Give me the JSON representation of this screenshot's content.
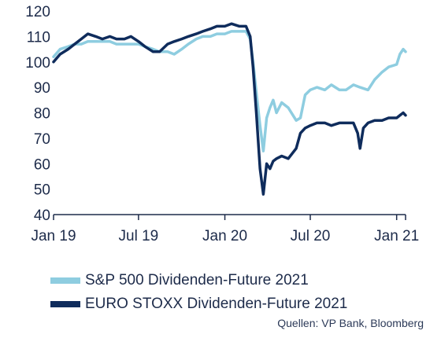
{
  "chart_data": {
    "type": "line",
    "title": "",
    "xlabel": "",
    "ylabel": "",
    "x_range": [
      "2019-01-01",
      "2021-01-20"
    ],
    "ylim": [
      40,
      120
    ],
    "y_ticks": [
      "40",
      "50",
      "60",
      "70",
      "80",
      "90",
      "100",
      "110",
      "120"
    ],
    "x_ticks": [
      {
        "label": "Jan 19",
        "date": "2019-01-01"
      },
      {
        "label": "Jul 19",
        "date": "2019-07-01"
      },
      {
        "label": "Jan 20",
        "date": "2020-01-01"
      },
      {
        "label": "Jul 20",
        "date": "2020-07-01"
      },
      {
        "label": "Jan 21",
        "date": "2021-01-01"
      }
    ],
    "grid": false,
    "legend_position": "bottom",
    "series": [
      {
        "name": "S&P 500 Dividenden-Future 2021",
        "color": "#8ecde0",
        "points": [
          [
            "2019-01-01",
            102
          ],
          [
            "2019-01-15",
            105
          ],
          [
            "2019-02-01",
            106
          ],
          [
            "2019-02-15",
            107
          ],
          [
            "2019-03-01",
            107
          ],
          [
            "2019-03-15",
            108
          ],
          [
            "2019-04-01",
            108
          ],
          [
            "2019-04-15",
            108
          ],
          [
            "2019-05-01",
            108
          ],
          [
            "2019-05-15",
            107
          ],
          [
            "2019-06-01",
            107
          ],
          [
            "2019-06-15",
            107
          ],
          [
            "2019-07-01",
            107
          ],
          [
            "2019-07-15",
            106
          ],
          [
            "2019-08-01",
            105
          ],
          [
            "2019-08-15",
            104
          ],
          [
            "2019-09-01",
            104
          ],
          [
            "2019-09-15",
            103
          ],
          [
            "2019-10-01",
            105
          ],
          [
            "2019-10-15",
            107
          ],
          [
            "2019-11-01",
            109
          ],
          [
            "2019-11-15",
            110
          ],
          [
            "2019-12-01",
            110
          ],
          [
            "2019-12-15",
            111
          ],
          [
            "2020-01-01",
            111
          ],
          [
            "2020-01-15",
            112
          ],
          [
            "2020-02-01",
            112
          ],
          [
            "2020-02-15",
            112
          ],
          [
            "2020-02-24",
            109
          ],
          [
            "2020-03-01",
            100
          ],
          [
            "2020-03-08",
            88
          ],
          [
            "2020-03-16",
            75
          ],
          [
            "2020-03-23",
            65
          ],
          [
            "2020-03-30",
            78
          ],
          [
            "2020-04-06",
            82
          ],
          [
            "2020-04-13",
            85
          ],
          [
            "2020-04-20",
            80
          ],
          [
            "2020-05-01",
            84
          ],
          [
            "2020-05-15",
            82
          ],
          [
            "2020-06-01",
            77
          ],
          [
            "2020-06-10",
            78
          ],
          [
            "2020-06-20",
            87
          ],
          [
            "2020-07-01",
            89
          ],
          [
            "2020-07-15",
            90
          ],
          [
            "2020-08-01",
            89
          ],
          [
            "2020-08-15",
            91
          ],
          [
            "2020-09-01",
            89
          ],
          [
            "2020-09-15",
            89
          ],
          [
            "2020-10-01",
            91
          ],
          [
            "2020-10-15",
            90
          ],
          [
            "2020-11-01",
            89
          ],
          [
            "2020-11-15",
            93
          ],
          [
            "2020-12-01",
            96
          ],
          [
            "2020-12-15",
            98
          ],
          [
            "2021-01-01",
            99
          ],
          [
            "2021-01-08",
            103
          ],
          [
            "2021-01-15",
            105
          ],
          [
            "2021-01-20",
            104
          ]
        ]
      },
      {
        "name": "EURO STOXX Dividenden-Future 2021",
        "color": "#0f2c5c",
        "points": [
          [
            "2019-01-01",
            100
          ],
          [
            "2019-01-15",
            103
          ],
          [
            "2019-02-01",
            105
          ],
          [
            "2019-02-15",
            107
          ],
          [
            "2019-03-01",
            109
          ],
          [
            "2019-03-15",
            111
          ],
          [
            "2019-04-01",
            110
          ],
          [
            "2019-04-15",
            109
          ],
          [
            "2019-05-01",
            110
          ],
          [
            "2019-05-15",
            109
          ],
          [
            "2019-06-01",
            109
          ],
          [
            "2019-06-15",
            110
          ],
          [
            "2019-07-01",
            108
          ],
          [
            "2019-07-15",
            106
          ],
          [
            "2019-08-01",
            104
          ],
          [
            "2019-08-15",
            104
          ],
          [
            "2019-09-01",
            107
          ],
          [
            "2019-09-15",
            108
          ],
          [
            "2019-10-01",
            109
          ],
          [
            "2019-10-15",
            110
          ],
          [
            "2019-11-01",
            111
          ],
          [
            "2019-11-15",
            112
          ],
          [
            "2019-12-01",
            113
          ],
          [
            "2019-12-15",
            114
          ],
          [
            "2020-01-01",
            114
          ],
          [
            "2020-01-15",
            115
          ],
          [
            "2020-02-01",
            114
          ],
          [
            "2020-02-15",
            114
          ],
          [
            "2020-02-24",
            110
          ],
          [
            "2020-03-01",
            98
          ],
          [
            "2020-03-08",
            80
          ],
          [
            "2020-03-16",
            58
          ],
          [
            "2020-03-23",
            48
          ],
          [
            "2020-03-30",
            60
          ],
          [
            "2020-04-06",
            58
          ],
          [
            "2020-04-13",
            61
          ],
          [
            "2020-04-20",
            62
          ],
          [
            "2020-05-01",
            63
          ],
          [
            "2020-05-15",
            62
          ],
          [
            "2020-06-01",
            66
          ],
          [
            "2020-06-10",
            72
          ],
          [
            "2020-06-20",
            74
          ],
          [
            "2020-07-01",
            75
          ],
          [
            "2020-07-15",
            76
          ],
          [
            "2020-08-01",
            76
          ],
          [
            "2020-08-15",
            75
          ],
          [
            "2020-09-01",
            76
          ],
          [
            "2020-09-15",
            76
          ],
          [
            "2020-10-01",
            76
          ],
          [
            "2020-10-10",
            72
          ],
          [
            "2020-10-15",
            66
          ],
          [
            "2020-10-22",
            74
          ],
          [
            "2020-11-01",
            76
          ],
          [
            "2020-11-15",
            77
          ],
          [
            "2020-12-01",
            77
          ],
          [
            "2020-12-15",
            78
          ],
          [
            "2021-01-01",
            78
          ],
          [
            "2021-01-08",
            79
          ],
          [
            "2021-01-15",
            80
          ],
          [
            "2021-01-20",
            79
          ]
        ]
      }
    ]
  },
  "legend": {
    "items": [
      {
        "label": "S&P 500 Dividenden-Future 2021",
        "color": "#8ecde0"
      },
      {
        "label": "EURO STOXX Dividenden-Future 2021",
        "color": "#0f2c5c"
      }
    ]
  },
  "source": {
    "text": "Quellen: VP Bank, Bloomberg"
  }
}
